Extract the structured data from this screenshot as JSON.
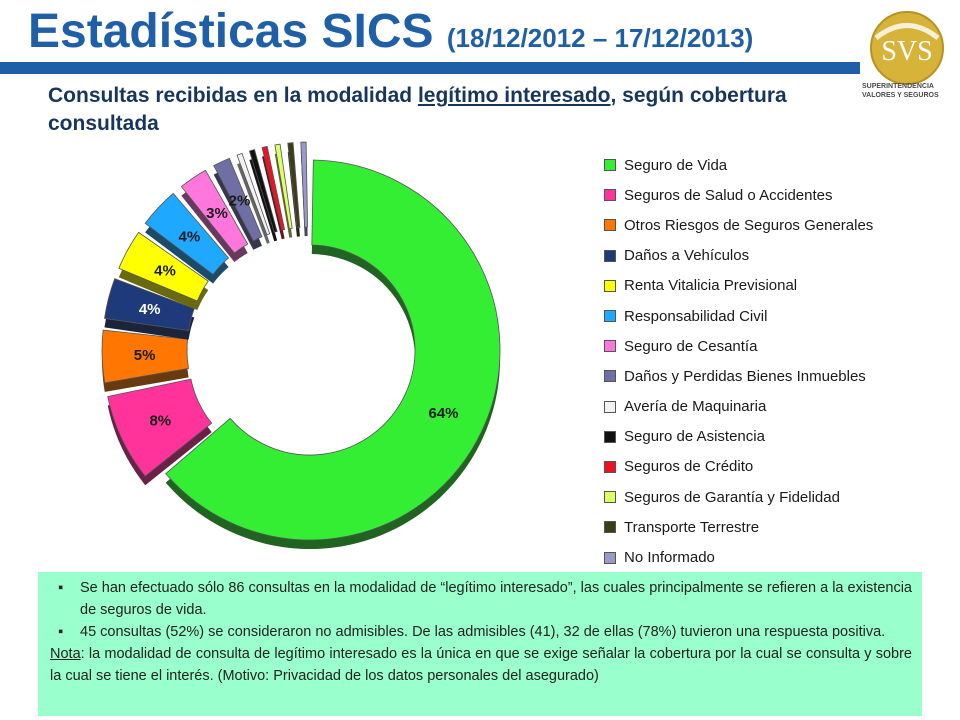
{
  "header": {
    "title": "Estadísticas SICS",
    "title_dates": "(18/12/2012 – 17/12/2013)",
    "subtitle_pre": "Consultas recibidas en la modalidad ",
    "subtitle_underlined": "legítimo interesado",
    "subtitle_post": ", según cobertura consultada",
    "accent_color": "#1f5fa8"
  },
  "logo": {
    "text": "SVS",
    "name_line1": "SUPERINTENDENCIA",
    "name_line2": "VALORES Y SEGUROS",
    "color": "#c9a227"
  },
  "chart_data": {
    "type": "pie",
    "style": "exploded 3D donut",
    "categories": [
      "Seguro de Vida",
      "Seguros de Salud o Accidentes",
      "Otros Riesgos de Seguros Generales",
      "Daños a Vehículos",
      "Renta Vitalicia Previsional",
      "Responsabilidad Civil",
      "Seguro de Cesantía",
      "Daños y Perdidas Bienes Inmuebles",
      "Avería de Maquinaria",
      "Seguro de Asistencia",
      "Seguros de Crédito",
      "Seguros de Garantía y Fidelidad",
      "Transporte Terrestre",
      "No Informado"
    ],
    "values": [
      64,
      8,
      5,
      4,
      4,
      4,
      3,
      2,
      1,
      1,
      1,
      1,
      1,
      1
    ],
    "labels": [
      "64%",
      "8%",
      "5%",
      "4%",
      "4%",
      "4%",
      "3%",
      "2%",
      "",
      "",
      "",
      "",
      "",
      ""
    ],
    "colors": [
      "#33ee33",
      "#ff3399",
      "#ff7700",
      "#1f3a7a",
      "#ffff00",
      "#1fa8ff",
      "#ff77dd",
      "#6f6fa6",
      "#f2f2f2",
      "#111111",
      "#ee1122",
      "#ddff66",
      "#3d3d1a",
      "#9999cc"
    ],
    "legend_position": "right"
  },
  "notes": {
    "bullets": [
      "Se han efectuado sólo 86 consultas en la modalidad de “legítimo interesado”, las cuales principalmente se refieren a la existencia de seguros de vida.",
      "45 consultas (52%) se consideraron no admisibles. De las admisibles (41), 32 de ellas (78%) tuvieron una respuesta positiva."
    ],
    "note_label": "Nota",
    "note_text": ": la modalidad de consulta de legítimo interesado es la única en que se exige señalar la cobertura por la cual se consulta y sobre la cual se tiene el interés. (Motivo: Privacidad de los datos personales del asegurado)",
    "background": "#99ffcc"
  }
}
